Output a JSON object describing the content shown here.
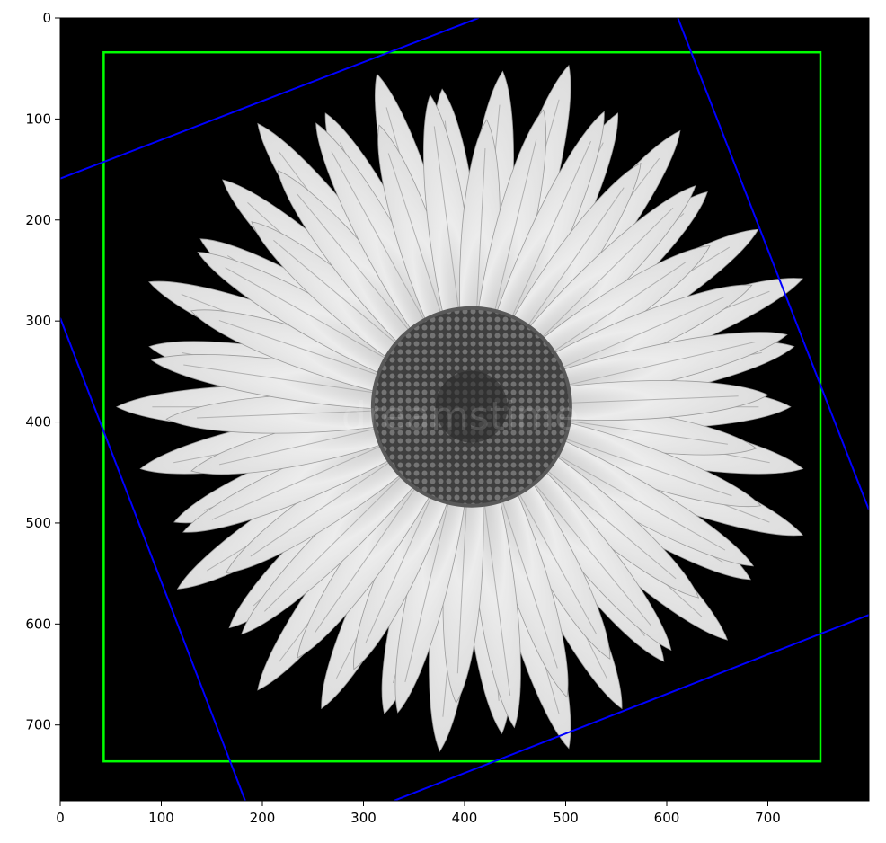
{
  "chart_data": {
    "type": "image",
    "image_subject": "daisy",
    "image_size": [
      800,
      775
    ],
    "x_ticks": [
      "0",
      "100",
      "200",
      "300",
      "400",
      "500",
      "600",
      "700"
    ],
    "y_ticks": [
      "0",
      "100",
      "200",
      "300",
      "400",
      "500",
      "600",
      "700"
    ],
    "x_tick_values": [
      0,
      100,
      200,
      300,
      400,
      500,
      600,
      700
    ],
    "y_tick_values": [
      0,
      100,
      200,
      300,
      400,
      500,
      600,
      700
    ],
    "axis_range_x": [
      0,
      800
    ],
    "axis_range_y": [
      775,
      0
    ],
    "watermark": "dreamstime",
    "axis_aligned_box": {
      "color": "#00ff00",
      "x_min": 43,
      "y_min": 34,
      "x_max": 752,
      "y_max": 736
    },
    "rotated_box": {
      "color": "#0000ff",
      "corners": [
        [
          625,
          33
        ],
        [
          798,
          483
        ],
        [
          430,
          749
        ],
        [
          18,
          410
        ]
      ],
      "edges": [
        {
          "from": [
            0,
            159
          ],
          "to": [
            414,
            0
          ]
        },
        {
          "from": [
            611,
            0
          ],
          "to": [
            800,
            487
          ]
        },
        {
          "from": [
            330,
            775
          ],
          "to": [
            800,
            591
          ]
        },
        {
          "from": [
            0,
            297
          ],
          "to": [
            183,
            775
          ]
        }
      ]
    },
    "grid": false
  },
  "colors": {
    "background": "#000000",
    "petal": "#e8e8e8",
    "center": "#3a3a3a"
  }
}
